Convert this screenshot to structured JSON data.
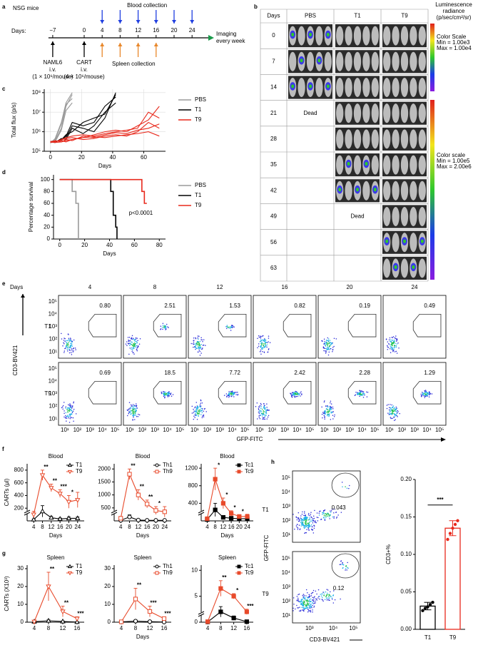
{
  "panels": [
    "a",
    "b",
    "c",
    "d",
    "e",
    "f",
    "g",
    "h"
  ],
  "timeline": {
    "title": "NSG mice",
    "days_label": "Days:",
    "days": [
      {
        "value": -7,
        "label": "−7"
      },
      0,
      4,
      8,
      12,
      16,
      20,
      24
    ],
    "blood": {
      "label": "Blood collection",
      "days": [
        4,
        8,
        12,
        16,
        20,
        24
      ]
    },
    "spleen": {
      "label": "Spleen collection",
      "days": [
        4,
        8,
        12,
        16
      ]
    },
    "imaging": [
      "Imaging",
      "every week"
    ],
    "injections": [
      {
        "day": -7,
        "lines": [
          "NAML6",
          "i.v.",
          "(1 × 10⁶/mouse)"
        ]
      },
      {
        "day": 0,
        "lines": [
          "CART",
          "i.v.",
          "(4 × 10⁶/mouse)"
        ]
      }
    ]
  },
  "imaging": {
    "headers": [
      "Days",
      "PBS",
      "T1",
      "T9"
    ],
    "rows": [
      {
        "day": "0",
        "cells": [
          null,
          null,
          null
        ],
        "imaged": [
          true,
          true,
          true
        ]
      },
      {
        "day": "7",
        "cells": [
          null,
          null,
          null
        ],
        "imaged": [
          true,
          true,
          true
        ]
      },
      {
        "day": "14",
        "cells": [
          null,
          null,
          null
        ],
        "imaged": [
          true,
          true,
          true
        ]
      },
      {
        "day": "21",
        "cells": [
          "Dead",
          null,
          null
        ],
        "imaged": [
          false,
          true,
          true
        ]
      },
      {
        "day": "28",
        "cells": [
          null,
          null,
          null
        ],
        "imaged": [
          false,
          true,
          true
        ]
      },
      {
        "day": "35",
        "cells": [
          null,
          null,
          null
        ],
        "imaged": [
          false,
          true,
          true
        ]
      },
      {
        "day": "42",
        "cells": [
          null,
          null,
          null
        ],
        "imaged": [
          false,
          true,
          true
        ]
      },
      {
        "day": "49",
        "cells": [
          null,
          "Dead",
          null
        ],
        "imaged": [
          false,
          false,
          true
        ]
      },
      {
        "day": "56",
        "cells": [
          null,
          null,
          null
        ],
        "imaged": [
          false,
          false,
          true
        ]
      },
      {
        "day": "63",
        "cells": [
          null,
          null,
          null
        ],
        "imaged": [
          false,
          false,
          true
        ]
      }
    ],
    "legend_title": [
      "Luminescence",
      "radiance",
      "(p/sec/cm²/sr)"
    ],
    "scales": [
      [
        "Color Scale",
        "Min = 1.00e3",
        "Max = 1.00e4"
      ],
      [
        "Color scale",
        "Min = 1.00e5",
        "Max = 2.00e6"
      ]
    ]
  },
  "flow": {
    "days_label": "Days",
    "days": [
      "4",
      "8",
      "12",
      "16",
      "20",
      "24"
    ],
    "rows": [
      {
        "name": "T1",
        "gates": [
          "0.80",
          "2.51",
          "1.53",
          "0.82",
          "0.19",
          "0.49"
        ]
      },
      {
        "name": "T9",
        "gates": [
          "0.69",
          "18.5",
          "7.72",
          "2.42",
          "2.28",
          "1.29"
        ]
      }
    ],
    "ylabel": "CD3-BV421",
    "xlabel": "GFP-FITC",
    "yticks": [
      "10¹",
      "10²",
      "10³",
      "10⁴",
      "10⁵"
    ],
    "xticks": [
      "10¹",
      "10²",
      "10³",
      "10⁴",
      "10⁵"
    ]
  },
  "flow_h": {
    "ylabel": "GFP-FITC",
    "xlabel": "CD3-BV421",
    "rows": [
      {
        "name": "T1",
        "gate": "0.043"
      },
      {
        "name": "T9",
        "gate": "0.12"
      }
    ],
    "yticks": [
      "10¹",
      "10²",
      "10³",
      "10⁴",
      "10⁵"
    ],
    "xticks": [
      "10³",
      "10⁴",
      "10⁵"
    ]
  },
  "chart_data": [
    {
      "type": "line",
      "ylabel": "Total flux (p/s)",
      "xlabel": "Days",
      "log_y": true,
      "grid": true,
      "legend": "right",
      "x": [
        0,
        3,
        7,
        10,
        14,
        21,
        28,
        35,
        42,
        49,
        56,
        63,
        70
      ],
      "xlim": [
        -4,
        74
      ],
      "xticks": [
        0,
        20,
        40,
        60
      ],
      "ylim": [
        100000,
        150000000
      ],
      "yticks": [
        {
          "value": 100000,
          "label": "10⁵"
        },
        {
          "value": 1000000,
          "label": "10⁶"
        },
        {
          "value": 10000000,
          "label": "10⁷"
        },
        {
          "value": 100000000,
          "label": "10⁸"
        }
      ],
      "series": [
        {
          "name": "PBS",
          "color": "#9a9a9a",
          "lines": [
            [
              280000,
              350000,
              1500000,
              20000000,
              80000000,
              null,
              null,
              null,
              null,
              null,
              null,
              null,
              null
            ],
            [
              300000,
              400000,
              2500000,
              25000000,
              50000000,
              null,
              null,
              null,
              null,
              null,
              null,
              null,
              null
            ],
            [
              320000,
              300000,
              1200000,
              12000000,
              30000000,
              null,
              null,
              null,
              null,
              null,
              null,
              null,
              null
            ],
            [
              260000,
              450000,
              3000000,
              30000000,
              100000000,
              null,
              null,
              null,
              null,
              null,
              null,
              null,
              null
            ]
          ]
        },
        {
          "name": "T1",
          "color": "#000000",
          "lines": [
            [
              300000,
              300000,
              400000,
              500000,
              2000000,
              1500000,
              1000000,
              5000000,
              100000000,
              null,
              null,
              null,
              null
            ],
            [
              280000,
              320000,
              350000,
              600000,
              3000000,
              2000000,
              3000000,
              20000000,
              60000000,
              null,
              null,
              null,
              null
            ],
            [
              300000,
              280000,
              450000,
              400000,
              1500000,
              800000,
              2000000,
              10000000,
              30000000,
              null,
              null,
              null,
              null
            ],
            [
              320000,
              300000,
              380000,
              700000,
              1000000,
              3000000,
              5000000,
              8000000,
              80000000,
              null,
              null,
              null,
              null
            ]
          ]
        },
        {
          "name": "T9",
          "color": "#e8291c",
          "lines": [
            [
              300000,
              300000,
              400000,
              500000,
              600000,
              700000,
              600000,
              800000,
              1000000,
              1200000,
              1500000,
              10000000,
              5000000
            ],
            [
              280000,
              320000,
              350000,
              300000,
              400000,
              500000,
              700000,
              1000000,
              1200000,
              1000000,
              2000000,
              4000000,
              20000000
            ],
            [
              300000,
              280000,
              300000,
              400000,
              350000,
              600000,
              500000,
              700000,
              900000,
              800000,
              1200000,
              1500000,
              2500000
            ],
            [
              320000,
              300000,
              380000,
              450000,
              500000,
              400000,
              450000,
              600000,
              700000,
              600000,
              1000000,
              3000000,
              1500000
            ],
            [
              300000,
              350000,
              300000,
              350000,
              400000,
              500000,
              550000,
              500000,
              600000,
              700000,
              800000,
              1000000,
              600000
            ]
          ]
        }
      ]
    },
    {
      "type": "step",
      "ylabel": "Percentage survival",
      "xlabel": "Days",
      "legend": "right",
      "annotation": "p<0.0001",
      "xlim": [
        -5,
        85
      ],
      "xticks": [
        0,
        20,
        40,
        60,
        80
      ],
      "ylim": [
        0,
        108
      ],
      "yticks": [
        0,
        20,
        40,
        60,
        80,
        100
      ],
      "series": [
        {
          "name": "PBS",
          "color": "#9a9a9a",
          "x": [
            0,
            10,
            13,
            15
          ],
          "values": [
            100,
            80,
            60,
            0
          ]
        },
        {
          "name": "T1",
          "color": "#000000",
          "x": [
            0,
            41,
            43,
            45,
            46
          ],
          "values": [
            100,
            80,
            40,
            20,
            0
          ]
        },
        {
          "name": "T9",
          "color": "#e8291c",
          "x": [
            0,
            66,
            68,
            70
          ],
          "values": [
            100,
            80,
            60,
            60
          ]
        }
      ]
    },
    {
      "type": "line",
      "title": "Blood",
      "ylabel": "CARTs (μl)",
      "xlabel": "Days",
      "legend": "upper right",
      "axis_break": true,
      "x": [
        4,
        8,
        12,
        16,
        20,
        24
      ],
      "xlim": [
        1,
        27
      ],
      "xticks": [
        4,
        8,
        12,
        16,
        20,
        24
      ],
      "ylim": [
        0,
        900
      ],
      "yticks": [
        200,
        400,
        600,
        800
      ],
      "stars": [
        null,
        "**",
        "**",
        "***",
        "*",
        null
      ],
      "series": [
        {
          "name": "T1",
          "color": "#000000",
          "marker": "triangle",
          "values": [
            20,
            150,
            50,
            30,
            40,
            40
          ],
          "errors": [
            10,
            90,
            20,
            15,
            20,
            20
          ]
        },
        {
          "name": "T9",
          "color": "#e84a2b",
          "marker": "triangle-down",
          "values": [
            100,
            720,
            520,
            430,
            300,
            330
          ],
          "errors": [
            50,
            80,
            60,
            60,
            100,
            120
          ]
        }
      ]
    },
    {
      "type": "line",
      "title": "Blood",
      "xlabel": "Days",
      "legend": "upper right",
      "axis_break": true,
      "x": [
        4,
        8,
        12,
        16,
        20,
        24
      ],
      "xlim": [
        1,
        27
      ],
      "xticks": [
        4,
        8,
        12,
        16,
        20,
        24
      ],
      "ylim": [
        0,
        2200
      ],
      "yticks": [
        500,
        1000,
        1500,
        2000
      ],
      "stars": [
        null,
        "**",
        "**",
        "**",
        "*",
        null
      ],
      "series": [
        {
          "name": "Th1",
          "color": "#000000",
          "marker": "circle",
          "values": [
            20,
            150,
            30,
            20,
            20,
            20
          ],
          "errors": [
            10,
            80,
            15,
            10,
            10,
            10
          ]
        },
        {
          "name": "Th9",
          "color": "#e84a2b",
          "marker": "square",
          "values": [
            100,
            1800,
            1000,
            650,
            400,
            350
          ],
          "errors": [
            60,
            200,
            200,
            150,
            150,
            200
          ]
        }
      ]
    },
    {
      "type": "line",
      "title": "Blood",
      "xlabel": "Days",
      "legend": "upper right",
      "axis_break": true,
      "x": [
        4,
        8,
        12,
        16,
        20,
        24
      ],
      "xlim": [
        1,
        27
      ],
      "xticks": [
        4,
        8,
        12,
        16,
        20,
        24
      ],
      "ylim": [
        0,
        1300
      ],
      "yticks": [
        400,
        800,
        1200
      ],
      "stars": [
        null,
        "*",
        "*",
        "*",
        "*",
        null
      ],
      "series": [
        {
          "name": "Tc1",
          "color": "#000000",
          "marker": "square-filled",
          "values": [
            30,
            250,
            80,
            60,
            50,
            50
          ],
          "errors": [
            20,
            150,
            40,
            30,
            30,
            30
          ]
        },
        {
          "name": "Tc9",
          "color": "#e84a2b",
          "marker": "square-filled",
          "values": [
            50,
            950,
            400,
            170,
            100,
            100
          ],
          "errors": [
            30,
            250,
            120,
            60,
            40,
            50
          ]
        }
      ]
    },
    {
      "type": "line",
      "title": "Spleen",
      "ylabel": "CARTs (X10³)",
      "legend": "upper right",
      "x": [
        4,
        8,
        12,
        16
      ],
      "xlim": [
        2,
        18
      ],
      "xticks": [
        4,
        8,
        12,
        16
      ],
      "ylim": [
        0,
        32
      ],
      "yticks": [
        0,
        10,
        20,
        30
      ],
      "stars": [
        null,
        "**",
        "**",
        "***"
      ],
      "series": [
        {
          "name": "T1",
          "color": "#000000",
          "marker": "triangle",
          "values": [
            0.3,
            0.8,
            0.4,
            0.1
          ],
          "errors": [
            0.2,
            0.5,
            0.3,
            0.1
          ]
        },
        {
          "name": "T9",
          "color": "#e84a2b",
          "marker": "triangle-down",
          "values": [
            0.3,
            20,
            6,
            2
          ],
          "errors": [
            0.2,
            8,
            3,
            1
          ]
        }
      ]
    },
    {
      "type": "line",
      "title": "Spleen",
      "xlabel": "Days",
      "legend": "upper right",
      "x": [
        4,
        8,
        12,
        16
      ],
      "xlim": [
        2,
        18
      ],
      "xticks": [
        4,
        8,
        12,
        16
      ],
      "ylim": [
        0,
        32
      ],
      "yticks": [
        0,
        10,
        20,
        30
      ],
      "stars": [
        null,
        "**",
        "***",
        "***"
      ],
      "series": [
        {
          "name": "Th1",
          "color": "#000000",
          "marker": "circle",
          "values": [
            0.2,
            0.6,
            0.3,
            0.1
          ],
          "errors": [
            0.1,
            0.4,
            0.2,
            0.1
          ]
        },
        {
          "name": "Th9",
          "color": "#e84a2b",
          "marker": "square",
          "values": [
            0.2,
            13,
            6,
            2
          ],
          "errors": [
            0.1,
            6,
            3,
            1
          ]
        }
      ]
    },
    {
      "type": "line",
      "title": "Spleen",
      "legend": "upper right",
      "axis_break": true,
      "x": [
        4,
        8,
        12,
        16
      ],
      "xlim": [
        2,
        18
      ],
      "xticks": [
        4,
        8,
        12,
        16
      ],
      "ylim": [
        0,
        11
      ],
      "yticks": [
        0,
        5,
        10
      ],
      "stars": [
        null,
        "**",
        "*",
        "***"
      ],
      "series": [
        {
          "name": "Tc1",
          "color": "#000000",
          "marker": "square-filled",
          "values": [
            0.05,
            2,
            0.8,
            0.1
          ],
          "errors": [
            0.03,
            1,
            0.4,
            0.05
          ]
        },
        {
          "name": "Tc9",
          "color": "#e84a2b",
          "marker": "square-filled",
          "values": [
            0.1,
            6.5,
            5,
            2
          ],
          "errors": [
            0.05,
            1.5,
            0.5,
            0.5
          ]
        }
      ]
    },
    {
      "type": "bar",
      "ylabel": "CD3+%",
      "annotation": "***",
      "categories": [
        "T1",
        "T9"
      ],
      "values": [
        0.031,
        0.135
      ],
      "errors": [
        0.005,
        0.01
      ],
      "points": [
        [
          0.025,
          0.028,
          0.03,
          0.033,
          0.036
        ],
        [
          0.12,
          0.128,
          0.135,
          0.14,
          0.145
        ]
      ],
      "colors": [
        "#000000",
        "#e8291c"
      ],
      "ylim": [
        0,
        0.2
      ],
      "yticks": [
        {
          "value": 0,
          "label": "0.00"
        },
        0.05,
        {
          "value": 0.1,
          "label": "0.10"
        },
        0.15,
        {
          "value": 0.2,
          "label": "0.20"
        }
      ]
    }
  ]
}
